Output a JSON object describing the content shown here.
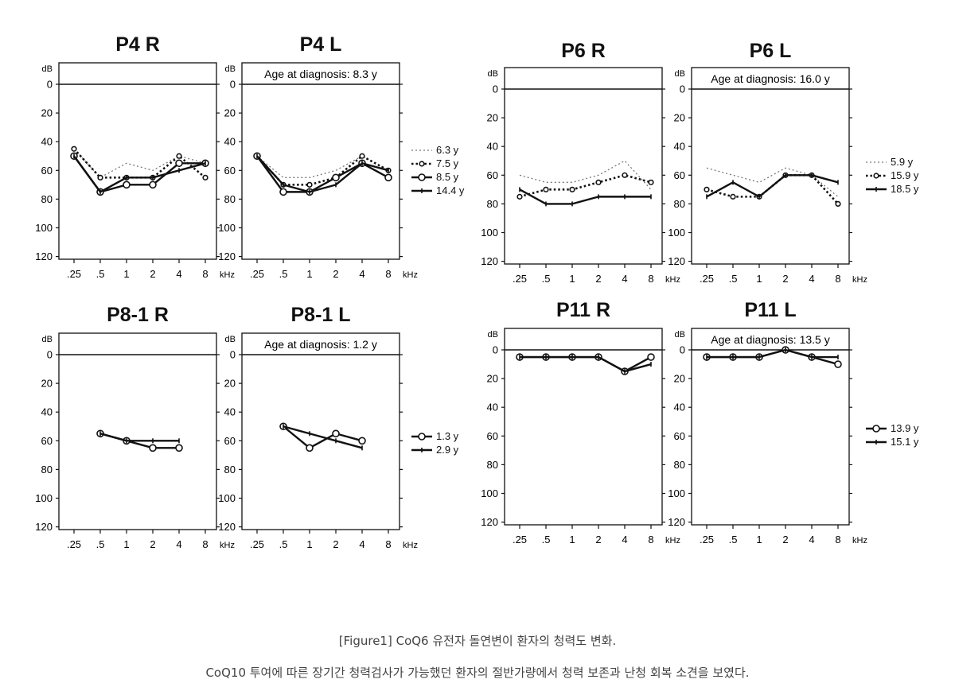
{
  "units": {
    "y": "dB",
    "x": "kHz"
  },
  "age_label_prefix": "Age at diagnosis: ",
  "caption": {
    "line1": "[Figure1] CoQ6 유전자 돌연변이 환자의 청력도 변화.",
    "line2": "CoQ10 투여에 따른 장기간 청력검사가 가능했던 환자의 절반가량에서 청력 보존과 난청 회복 소견을 보였다."
  },
  "chart_data": [
    {
      "type": "line",
      "title": "P4 R",
      "annotation": "",
      "ylabel": "dB",
      "xlabel": "kHz",
      "ylim": [
        0,
        120
      ],
      "y_inverted": true,
      "yticks": [
        "0",
        "20",
        "40",
        "60",
        "80",
        "100",
        "120"
      ],
      "categories": [
        ".25",
        ".5",
        "1",
        "2",
        "4",
        "8"
      ],
      "series": [
        {
          "name": "6.3 y",
          "style": "dotted-thin",
          "values": [
            45,
            65,
            55,
            60,
            50,
            55
          ]
        },
        {
          "name": "7.5 y",
          "style": "dotted-circle",
          "values": [
            45,
            65,
            65,
            65,
            50,
            65
          ]
        },
        {
          "name": "8.5 y",
          "style": "solid-circle",
          "values": [
            50,
            75,
            70,
            70,
            55,
            55
          ]
        },
        {
          "name": "14.4 y",
          "style": "solid-plus",
          "values": [
            50,
            75,
            65,
            65,
            60,
            55
          ]
        }
      ]
    },
    {
      "type": "line",
      "title": "P4 L",
      "annotation": "8.3 y",
      "ylabel": "dB",
      "xlabel": "kHz",
      "ylim": [
        0,
        120
      ],
      "y_inverted": true,
      "yticks": [
        "0",
        "20",
        "40",
        "60",
        "80",
        "100",
        "120"
      ],
      "categories": [
        ".25",
        ".5",
        "1",
        "2",
        "4",
        "8"
      ],
      "legend_ref": 0,
      "series": [
        {
          "name": "6.3 y",
          "style": "dotted-thin",
          "values": [
            50,
            65,
            65,
            60,
            50,
            60
          ]
        },
        {
          "name": "7.5 y",
          "style": "dotted-circle",
          "values": [
            50,
            70,
            70,
            65,
            50,
            60
          ]
        },
        {
          "name": "8.5 y",
          "style": "solid-circle",
          "values": [
            50,
            75,
            75,
            65,
            55,
            65
          ]
        },
        {
          "name": "14.4 y",
          "style": "solid-plus",
          "values": [
            50,
            70,
            75,
            70,
            55,
            60
          ]
        }
      ]
    },
    {
      "type": "line",
      "title": "P6 R",
      "annotation": "",
      "ylabel": "dB",
      "xlabel": "kHz",
      "ylim": [
        0,
        120
      ],
      "y_inverted": true,
      "yticks": [
        "0",
        "20",
        "40",
        "60",
        "80",
        "100",
        "120"
      ],
      "categories": [
        ".25",
        ".5",
        "1",
        "2",
        "4",
        "8"
      ],
      "series": [
        {
          "name": "5.9 y",
          "style": "dotted-thin",
          "values": [
            60,
            65,
            65,
            60,
            50,
            70
          ]
        },
        {
          "name": "15.9 y",
          "style": "dotted-circle",
          "values": [
            75,
            70,
            70,
            65,
            60,
            65
          ]
        },
        {
          "name": "18.5 y",
          "style": "solid-plus",
          "values": [
            70,
            80,
            80,
            75,
            75,
            75
          ]
        }
      ]
    },
    {
      "type": "line",
      "title": "P6 L",
      "annotation": "16.0 y",
      "ylabel": "dB",
      "xlabel": "kHz",
      "ylim": [
        0,
        120
      ],
      "y_inverted": true,
      "yticks": [
        "0",
        "20",
        "40",
        "60",
        "80",
        "100",
        "120"
      ],
      "categories": [
        ".25",
        ".5",
        "1",
        "2",
        "4",
        "8"
      ],
      "legend_ref": 2,
      "series": [
        {
          "name": "5.9 y",
          "style": "dotted-thin",
          "values": [
            55,
            60,
            65,
            55,
            60,
            75
          ]
        },
        {
          "name": "15.9 y",
          "style": "dotted-circle",
          "values": [
            70,
            75,
            75,
            60,
            60,
            80
          ]
        },
        {
          "name": "18.5 y",
          "style": "solid-plus",
          "values": [
            75,
            65,
            75,
            60,
            60,
            65
          ]
        }
      ]
    },
    {
      "type": "line",
      "title": "P8-1 R",
      "annotation": "",
      "ylabel": "dB",
      "xlabel": "kHz",
      "ylim": [
        0,
        120
      ],
      "y_inverted": true,
      "yticks": [
        "0",
        "20",
        "40",
        "60",
        "80",
        "100",
        "120"
      ],
      "categories": [
        ".25",
        ".5",
        "1",
        "2",
        "4",
        "8"
      ],
      "series": [
        {
          "name": "1.3 y",
          "style": "solid-circle",
          "values": [
            null,
            55,
            60,
            65,
            65,
            null
          ]
        },
        {
          "name": "2.9 y",
          "style": "solid-plus",
          "values": [
            null,
            55,
            60,
            60,
            60,
            null
          ]
        }
      ]
    },
    {
      "type": "line",
      "title": "P8-1 L",
      "annotation": "1.2 y",
      "ylabel": "dB",
      "xlabel": "kHz",
      "ylim": [
        0,
        120
      ],
      "y_inverted": true,
      "yticks": [
        "0",
        "20",
        "40",
        "60",
        "80",
        "100",
        "120"
      ],
      "categories": [
        ".25",
        ".5",
        "1",
        "2",
        "4",
        "8"
      ],
      "legend_ref": 4,
      "series": [
        {
          "name": "1.3 y",
          "style": "solid-circle",
          "values": [
            null,
            50,
            65,
            55,
            60,
            null
          ]
        },
        {
          "name": "2.9 y",
          "style": "solid-plus",
          "values": [
            null,
            50,
            55,
            60,
            65,
            null
          ]
        }
      ]
    },
    {
      "type": "line",
      "title": "P11 R",
      "annotation": "",
      "ylabel": "dB",
      "xlabel": "kHz",
      "ylim": [
        0,
        120
      ],
      "y_inverted": true,
      "yticks": [
        "0",
        "20",
        "40",
        "60",
        "80",
        "100",
        "120"
      ],
      "categories": [
        ".25",
        ".5",
        "1",
        "2",
        "4",
        "8"
      ],
      "series": [
        {
          "name": "13.9 y",
          "style": "solid-circle",
          "values": [
            5,
            5,
            5,
            5,
            15,
            5
          ]
        },
        {
          "name": "15.1 y",
          "style": "solid-plus",
          "values": [
            5,
            5,
            5,
            5,
            15,
            10
          ]
        }
      ]
    },
    {
      "type": "line",
      "title": "P11 L",
      "annotation": "13.5 y",
      "ylabel": "dB",
      "xlabel": "kHz",
      "ylim": [
        0,
        120
      ],
      "y_inverted": true,
      "yticks": [
        "0",
        "20",
        "40",
        "60",
        "80",
        "100",
        "120"
      ],
      "categories": [
        ".25",
        ".5",
        "1",
        "2",
        "4",
        "8"
      ],
      "legend_ref": 6,
      "series": [
        {
          "name": "13.9 y",
          "style": "solid-circle",
          "values": [
            5,
            5,
            5,
            0,
            5,
            10
          ]
        },
        {
          "name": "15.1 y",
          "style": "solid-plus",
          "values": [
            5,
            5,
            5,
            0,
            5,
            5
          ]
        }
      ]
    }
  ]
}
